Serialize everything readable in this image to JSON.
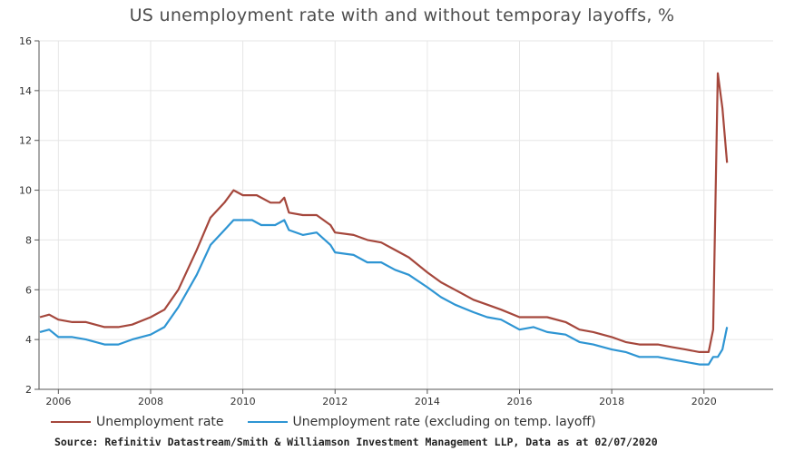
{
  "chart_data": {
    "type": "line",
    "title": "US unemployment rate with and without temporay layoffs, %",
    "xlabel": "",
    "ylabel": "",
    "xlim": [
      2005.58,
      2021.5
    ],
    "ylim": [
      2,
      16
    ],
    "x_ticks": [
      "2006",
      "2008",
      "2010",
      "2012",
      "2014",
      "2016",
      "2018",
      "2020"
    ],
    "y_ticks": [
      "2",
      "4",
      "6",
      "8",
      "10",
      "12",
      "14",
      "16"
    ],
    "grid": true,
    "legend_position": "bottom",
    "series": [
      {
        "name": "Unemployment rate",
        "color": "#a5473c",
        "points": [
          [
            2005.6,
            4.9
          ],
          [
            2005.8,
            5.0
          ],
          [
            2006.0,
            4.8
          ],
          [
            2006.3,
            4.7
          ],
          [
            2006.6,
            4.7
          ],
          [
            2007.0,
            4.5
          ],
          [
            2007.3,
            4.5
          ],
          [
            2007.6,
            4.6
          ],
          [
            2008.0,
            4.9
          ],
          [
            2008.3,
            5.2
          ],
          [
            2008.6,
            6.0
          ],
          [
            2009.0,
            7.6
          ],
          [
            2009.3,
            8.9
          ],
          [
            2009.6,
            9.5
          ],
          [
            2009.8,
            10.0
          ],
          [
            2010.0,
            9.8
          ],
          [
            2010.3,
            9.8
          ],
          [
            2010.6,
            9.5
          ],
          [
            2010.8,
            9.5
          ],
          [
            2010.9,
            9.7
          ],
          [
            2011.0,
            9.1
          ],
          [
            2011.3,
            9.0
          ],
          [
            2011.6,
            9.0
          ],
          [
            2011.9,
            8.6
          ],
          [
            2012.0,
            8.3
          ],
          [
            2012.4,
            8.2
          ],
          [
            2012.7,
            8.0
          ],
          [
            2013.0,
            7.9
          ],
          [
            2013.3,
            7.6
          ],
          [
            2013.6,
            7.3
          ],
          [
            2014.0,
            6.7
          ],
          [
            2014.3,
            6.3
          ],
          [
            2014.6,
            6.0
          ],
          [
            2015.0,
            5.6
          ],
          [
            2015.3,
            5.4
          ],
          [
            2015.6,
            5.2
          ],
          [
            2016.0,
            4.9
          ],
          [
            2016.3,
            4.9
          ],
          [
            2016.6,
            4.9
          ],
          [
            2017.0,
            4.7
          ],
          [
            2017.3,
            4.4
          ],
          [
            2017.6,
            4.3
          ],
          [
            2018.0,
            4.1
          ],
          [
            2018.3,
            3.9
          ],
          [
            2018.6,
            3.8
          ],
          [
            2019.0,
            3.8
          ],
          [
            2019.3,
            3.7
          ],
          [
            2019.6,
            3.6
          ],
          [
            2019.9,
            3.5
          ],
          [
            2020.1,
            3.5
          ],
          [
            2020.2,
            4.4
          ],
          [
            2020.3,
            14.7
          ],
          [
            2020.4,
            13.3
          ],
          [
            2020.5,
            11.1
          ]
        ]
      },
      {
        "name": "Unemployment rate (excluding on temp. layoff)",
        "color": "#2e95d3",
        "points": [
          [
            2005.6,
            4.3
          ],
          [
            2005.8,
            4.4
          ],
          [
            2006.0,
            4.1
          ],
          [
            2006.3,
            4.1
          ],
          [
            2006.6,
            4.0
          ],
          [
            2007.0,
            3.8
          ],
          [
            2007.3,
            3.8
          ],
          [
            2007.6,
            4.0
          ],
          [
            2008.0,
            4.2
          ],
          [
            2008.3,
            4.5
          ],
          [
            2008.6,
            5.3
          ],
          [
            2009.0,
            6.6
          ],
          [
            2009.3,
            7.8
          ],
          [
            2009.6,
            8.4
          ],
          [
            2009.8,
            8.8
          ],
          [
            2010.0,
            8.8
          ],
          [
            2010.2,
            8.8
          ],
          [
            2010.4,
            8.6
          ],
          [
            2010.7,
            8.6
          ],
          [
            2010.9,
            8.8
          ],
          [
            2011.0,
            8.4
          ],
          [
            2011.3,
            8.2
          ],
          [
            2011.6,
            8.3
          ],
          [
            2011.9,
            7.8
          ],
          [
            2012.0,
            7.5
          ],
          [
            2012.4,
            7.4
          ],
          [
            2012.7,
            7.1
          ],
          [
            2013.0,
            7.1
          ],
          [
            2013.3,
            6.8
          ],
          [
            2013.6,
            6.6
          ],
          [
            2014.0,
            6.1
          ],
          [
            2014.3,
            5.7
          ],
          [
            2014.6,
            5.4
          ],
          [
            2015.0,
            5.1
          ],
          [
            2015.3,
            4.9
          ],
          [
            2015.6,
            4.8
          ],
          [
            2016.0,
            4.4
          ],
          [
            2016.3,
            4.5
          ],
          [
            2016.6,
            4.3
          ],
          [
            2017.0,
            4.2
          ],
          [
            2017.3,
            3.9
          ],
          [
            2017.6,
            3.8
          ],
          [
            2018.0,
            3.6
          ],
          [
            2018.3,
            3.5
          ],
          [
            2018.6,
            3.3
          ],
          [
            2019.0,
            3.3
          ],
          [
            2019.3,
            3.2
          ],
          [
            2019.6,
            3.1
          ],
          [
            2019.9,
            3.0
          ],
          [
            2020.1,
            3.0
          ],
          [
            2020.2,
            3.3
          ],
          [
            2020.3,
            3.3
          ],
          [
            2020.4,
            3.6
          ],
          [
            2020.5,
            4.5
          ]
        ]
      }
    ]
  },
  "source_note": "Source: Refinitiv Datastream/Smith & Williamson Investment Management LLP, Data as at 02/07/2020"
}
